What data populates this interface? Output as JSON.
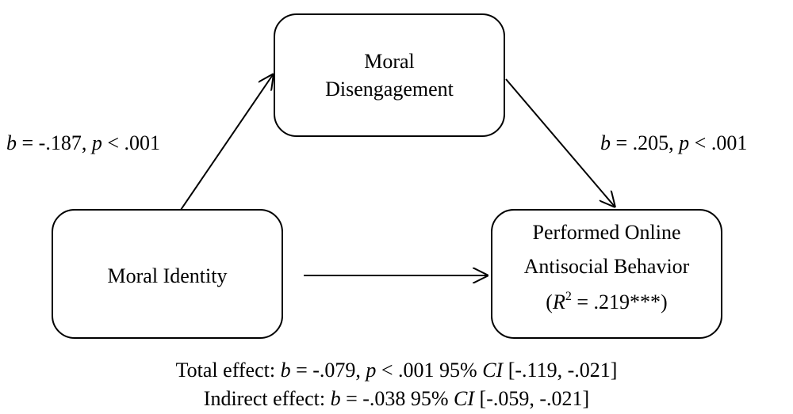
{
  "nodes": [
    {
      "lines": [
        [
          "Moral"
        ],
        [
          "Disengagement"
        ]
      ]
    },
    {
      "lines": [
        [
          "Moral Identity"
        ]
      ]
    },
    {
      "lines": [
        [
          "Performed Online"
        ],
        [
          "Antisocial Behavior"
        ],
        [
          "(",
          "R",
          "2",
          " = .219***)"
        ]
      ]
    }
  ],
  "paths": [
    {
      "label": [
        "b",
        " = -.187, ",
        "p",
        " < .001"
      ]
    },
    {
      "label": [
        "b",
        " = .205, ",
        "p",
        " < .001"
      ]
    }
  ],
  "effects": [
    [
      "Total effect: ",
      "b",
      " = -.079, ",
      "p",
      " < .001 95% ",
      "CI",
      " [-.119, -.021]"
    ],
    [
      "Indirect effect: ",
      "b",
      " = -.038 95% ",
      "CI",
      " [-.059, -.021]"
    ]
  ]
}
